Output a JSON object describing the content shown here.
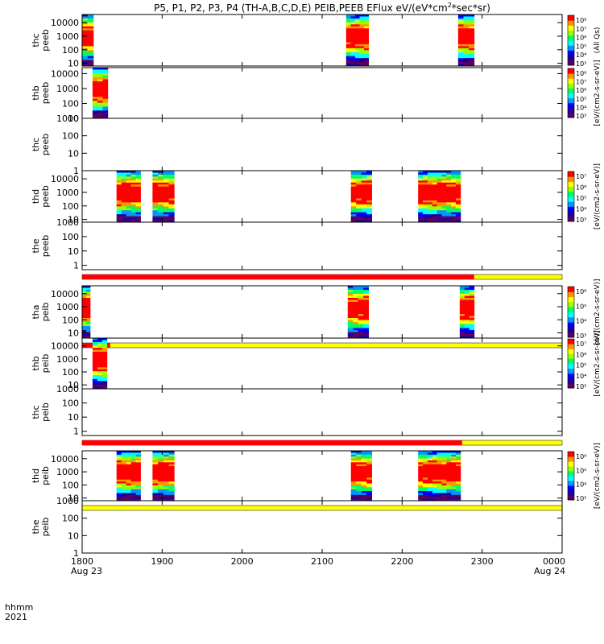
{
  "chart_data": {
    "type": "heatmap",
    "title": "P5, P1, P2, P3, P4 (TH-A,B,C,D,E) PEIB,PEEB EFlux eV/(eV*cm²*sec*sr)",
    "title_parts": {
      "main": "P5, P1, P2, P3, P4 (TH-A,B,C,D,E) PEIB,PEEB EFlux eV/(eV*cm",
      "sup1": "2",
      "mid": "*sec*sr)"
    },
    "x_axis": {
      "ticks": [
        "1800",
        "1900",
        "2000",
        "2100",
        "2200",
        "2300",
        "0000"
      ],
      "tick_values": [
        0,
        1,
        2,
        3,
        4,
        5,
        6
      ],
      "range": [
        0,
        6
      ],
      "date_start": "Aug 23",
      "date_end": "Aug 24",
      "unit_label": "hhmm",
      "year_label": "2021"
    },
    "colorscale": [
      "#5a0064",
      "#1e0096",
      "#0000ff",
      "#0096ff",
      "#00ffff",
      "#00ff64",
      "#96ff00",
      "#ffff00",
      "#ff9600",
      "#ff0000"
    ],
    "panels": [
      {
        "name": "thc_peeb",
        "label_top": "thc",
        "label_bot": "peeb",
        "yticks": [
          "10000",
          "1000",
          "100",
          "10"
        ],
        "ytick_values": [
          4,
          3,
          2,
          1
        ],
        "yrange": [
          0.8,
          4.6
        ],
        "blocks": [
          [
            0.0,
            0.14
          ],
          [
            3.3,
            3.58
          ],
          [
            4.7,
            4.9
          ]
        ],
        "flag_bar": null,
        "colorbar": {
          "ticks": [
            "10⁸",
            "10⁷",
            "10⁶",
            "10⁵",
            "10⁴",
            "10³"
          ],
          "label": "(All Qs)"
        }
      },
      {
        "name": "thb_peeb",
        "label_top": "thb",
        "label_bot": "peeb",
        "yticks": [
          "10000",
          "1000",
          "100",
          "10"
        ],
        "ytick_values": [
          4,
          3,
          2,
          1
        ],
        "yrange": [
          1,
          4.4
        ],
        "blocks": [
          [
            0.13,
            0.32
          ]
        ],
        "flag_bar": null,
        "colorbar": {
          "ticks": [
            "10⁸",
            "10⁷",
            "10⁶",
            "10⁵",
            "10⁴",
            "10³"
          ],
          "label": "[eV/(cm2-s-sr-eV)]"
        }
      },
      {
        "name": "thc_peeb_2",
        "label_top": "thc",
        "label_bot": "peeb",
        "yticks": [
          "1000",
          "100",
          "10",
          "1"
        ],
        "ytick_values": [
          3,
          2,
          1,
          0
        ],
        "yrange": [
          0,
          3
        ],
        "blocks": [],
        "flag_bar": null,
        "colorbar": null
      },
      {
        "name": "thd_peeb",
        "label_top": "thd",
        "label_bot": "peeb",
        "yticks": [
          "10000",
          "1000",
          "100",
          "10"
        ],
        "ytick_values": [
          4,
          3,
          2,
          1
        ],
        "yrange": [
          0.8,
          4.6
        ],
        "blocks": [
          [
            0.43,
            0.73
          ],
          [
            0.88,
            1.15
          ],
          [
            3.36,
            3.62
          ],
          [
            4.2,
            4.73
          ]
        ],
        "flag_bar": null,
        "colorbar": {
          "ticks": [
            "10⁷",
            "10⁶",
            "10⁵",
            "10⁴",
            "10³"
          ],
          "label": "[eV/(cm2-s-sr-eV)]"
        }
      },
      {
        "name": "the_peeb",
        "label_top": "the",
        "label_bot": "peeb",
        "yticks": [
          "1000",
          "100",
          "10",
          "1"
        ],
        "ytick_values": [
          3,
          2,
          1,
          0
        ],
        "yrange": [
          -0.3,
          3
        ],
        "blocks": [],
        "flag_bar": {
          "red_end": 4.9,
          "yellow_end": 6.0
        },
        "colorbar": null
      },
      {
        "name": "tha_peib",
        "label_top": "tha",
        "label_bot": "peib",
        "yticks": [
          "10000",
          "1000",
          "100",
          "10"
        ],
        "ytick_values": [
          4,
          3,
          2,
          1
        ],
        "yrange": [
          0.6,
          4.6
        ],
        "blocks": [
          [
            0.0,
            0.1
          ],
          [
            3.32,
            3.58
          ],
          [
            4.72,
            4.9
          ]
        ],
        "flag_bar": {
          "red_end": 0.35,
          "yellow_end": 6.0
        },
        "colorbar": {
          "ticks": [
            "10⁶",
            "10⁵",
            "10⁴",
            "10³"
          ],
          "label": "[eV/(cm2-s-sr-eV)]"
        }
      },
      {
        "name": "thb_peib",
        "label_top": "thb",
        "label_bot": "peib",
        "yticks": [
          "10000",
          "1000",
          "100",
          "10"
        ],
        "ytick_values": [
          4,
          3,
          2,
          1
        ],
        "yrange": [
          0.7,
          4.6
        ],
        "blocks": [
          [
            0.13,
            0.31
          ]
        ],
        "flag_bar": null,
        "colorbar": {
          "ticks": [
            "10⁷",
            "10⁶",
            "10⁵",
            "10⁴",
            "10³"
          ],
          "label": "[eV/(cm2-s-sr-eV)]"
        }
      },
      {
        "name": "thc_peib",
        "label_top": "thc",
        "label_bot": "peib",
        "yticks": [
          "1000",
          "100",
          "10",
          "1"
        ],
        "ytick_values": [
          3,
          2,
          1,
          0
        ],
        "yrange": [
          -0.3,
          3
        ],
        "blocks": [],
        "flag_bar": {
          "red_end": 4.75,
          "yellow_end": 6.0
        },
        "colorbar": null
      },
      {
        "name": "thd_peib",
        "label_top": "thd",
        "label_bot": "peib",
        "yticks": [
          "10000",
          "1000",
          "100",
          "10"
        ],
        "ytick_values": [
          4,
          3,
          2,
          1
        ],
        "yrange": [
          0.8,
          4.6
        ],
        "blocks": [
          [
            0.43,
            0.73
          ],
          [
            0.88,
            1.15
          ],
          [
            3.36,
            3.62
          ],
          [
            4.2,
            4.73
          ]
        ],
        "flag_bar": {
          "red_end": 0.0,
          "yellow_end": 6.0
        },
        "colorbar": {
          "ticks": [
            "10⁶",
            "10⁵",
            "10⁴",
            "10³"
          ],
          "label": "[eV/(cm2-s-sr-eV)]"
        }
      },
      {
        "name": "the_peib",
        "label_top": "the",
        "label_bot": "peib",
        "yticks": [
          "1000",
          "100",
          "10",
          "1"
        ],
        "ytick_values": [
          3,
          2,
          1,
          0
        ],
        "yrange": [
          0,
          3
        ],
        "blocks": [],
        "flag_bar": null,
        "colorbar": null
      }
    ]
  }
}
